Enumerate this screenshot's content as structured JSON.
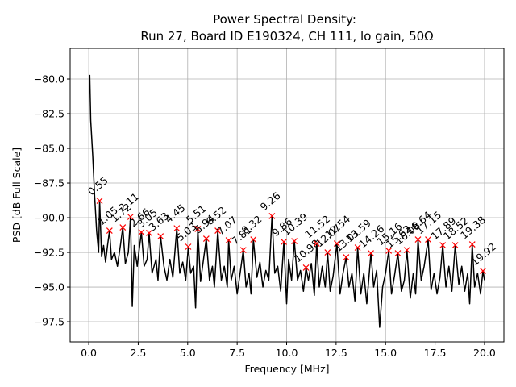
{
  "chart_data": {
    "type": "line",
    "title": "Power Spectral Density:",
    "subtitle": "Run 27, Board ID E190324, CH 111, lo gain, 50Ω",
    "x_label": "Frequency [MHz]",
    "y_label": "PSD [dB Full Scale]",
    "grid": true,
    "xlim": [
      -0.94,
      20.98
    ],
    "ylim": [
      -98.95,
      -77.79
    ],
    "xticks": [
      {
        "value": 0,
        "label": "0.0"
      },
      {
        "value": 2.5,
        "label": "2.5"
      },
      {
        "value": 5,
        "label": "5.0"
      },
      {
        "value": 7.5,
        "label": "7.5"
      },
      {
        "value": 10,
        "label": "10.0"
      },
      {
        "value": 12.5,
        "label": "12.5"
      },
      {
        "value": 15,
        "label": "15.0"
      },
      {
        "value": 17.5,
        "label": "17.5"
      },
      {
        "value": 20,
        "label": "20.0"
      }
    ],
    "yticks": [
      {
        "value": -97.5,
        "label": "−97.5"
      },
      {
        "value": -95,
        "label": "−95.0"
      },
      {
        "value": -92.5,
        "label": "−92.5"
      },
      {
        "value": -90,
        "label": "−90.0"
      },
      {
        "value": -87.5,
        "label": "−87.5"
      },
      {
        "value": -85,
        "label": "−85.0"
      },
      {
        "value": -82.5,
        "label": "−82.5"
      },
      {
        "value": -80,
        "label": "−80.0"
      }
    ],
    "series": [
      {
        "color": "#000000",
        "x": [
          0.05,
          0.1,
          0.2,
          0.3,
          0.4,
          0.5,
          0.55,
          0.65,
          0.75,
          0.85,
          0.95,
          1.05,
          1.15,
          1.3,
          1.45,
          1.6,
          1.72,
          1.85,
          2.0,
          2.11,
          2.2,
          2.3,
          2.45,
          2.55,
          2.66,
          2.8,
          2.95,
          3.05,
          3.2,
          3.4,
          3.5,
          3.63,
          3.8,
          3.95,
          4.1,
          4.25,
          4.45,
          4.6,
          4.75,
          4.9,
          5.03,
          5.15,
          5.3,
          5.4,
          5.51,
          5.65,
          5.8,
          5.94,
          6.1,
          6.25,
          6.35,
          6.52,
          6.7,
          6.85,
          7.0,
          7.07,
          7.2,
          7.35,
          7.5,
          7.65,
          7.81,
          7.95,
          8.1,
          8.2,
          8.32,
          8.5,
          8.65,
          8.8,
          8.95,
          9.1,
          9.26,
          9.4,
          9.55,
          9.7,
          9.86,
          10.0,
          10.1,
          10.25,
          10.39,
          10.55,
          10.7,
          10.85,
          10.98,
          11.1,
          11.25,
          11.4,
          11.52,
          11.65,
          11.8,
          11.95,
          12.07,
          12.2,
          12.35,
          12.54,
          12.7,
          12.85,
          13.01,
          13.15,
          13.3,
          13.45,
          13.59,
          13.75,
          13.9,
          14.05,
          14.26,
          14.4,
          14.55,
          14.7,
          14.85,
          15.0,
          15.16,
          15.3,
          15.45,
          15.62,
          15.8,
          15.95,
          16.08,
          16.25,
          16.4,
          16.52,
          16.64,
          16.8,
          16.95,
          17.15,
          17.3,
          17.45,
          17.6,
          17.75,
          17.89,
          18.05,
          18.2,
          18.35,
          18.52,
          18.7,
          18.85,
          19.0,
          19.15,
          19.25,
          19.38,
          19.5,
          19.65,
          19.8,
          19.92,
          20.0
        ],
        "values": [
          -79.7,
          -83.0,
          -85.5,
          -88.5,
          -91,
          -92.5,
          -88.78,
          -92.8,
          -92.0,
          -93.2,
          -92,
          -90.93,
          -93,
          -92.5,
          -93.5,
          -92,
          -90.7,
          -93.3,
          -92.5,
          -89.94,
          -96.4,
          -92,
          -93.5,
          -92.3,
          -91.05,
          -93.5,
          -93,
          -91.1,
          -94,
          -93,
          -94.5,
          -91.34,
          -93.5,
          -94.5,
          -93,
          -94.3,
          -90.76,
          -94,
          -93.2,
          -94.5,
          -92.09,
          -94,
          -93.5,
          -96.5,
          -90.81,
          -94.6,
          -93,
          -91.51,
          -94.5,
          -93.5,
          -95,
          -90.93,
          -94.5,
          -93.5,
          -95,
          -91.63,
          -94.5,
          -93.5,
          -95.5,
          -94,
          -92.33,
          -95,
          -94,
          -95.5,
          -91.57,
          -94.3,
          -93.2,
          -95,
          -93.8,
          -94.5,
          -89.88,
          -94,
          -93.5,
          -95.3,
          -91.74,
          -96.2,
          -93,
          -94.5,
          -91.69,
          -94.5,
          -93.8,
          -95.3,
          -93.6,
          -94.5,
          -93.3,
          -95.6,
          -91.86,
          -95,
          -93.5,
          -95,
          -92.5,
          -95.3,
          -94.2,
          -91.86,
          -95.5,
          -94,
          -92.85,
          -95,
          -94,
          -96,
          -92.15,
          -95.5,
          -94,
          -96.2,
          -92.56,
          -95,
          -93.8,
          -97.9,
          -95,
          -94,
          -92.38,
          -95.5,
          -94.2,
          -92.56,
          -95.3,
          -94.5,
          -92.33,
          -95.8,
          -94,
          -95.5,
          -91.57,
          -94.5,
          -93.5,
          -91.57,
          -95.2,
          -94,
          -95.5,
          -94.3,
          -91.98,
          -95,
          -93.5,
          -95.3,
          -91.98,
          -94.8,
          -93.5,
          -95.3,
          -94,
          -96.2,
          -91.92,
          -95,
          -94,
          -95.5,
          -93.84,
          -94.5
        ]
      }
    ],
    "peaks": {
      "color": "#ff0000",
      "x": [
        0.55,
        1.05,
        1.72,
        2.11,
        2.66,
        3.05,
        3.63,
        4.45,
        5.03,
        5.51,
        5.94,
        6.52,
        7.07,
        7.81,
        8.32,
        9.26,
        9.86,
        10.39,
        10.98,
        11.52,
        12.07,
        12.54,
        13.01,
        13.59,
        14.26,
        15.16,
        15.62,
        16.08,
        16.64,
        17.15,
        17.89,
        18.52,
        19.38,
        19.92
      ],
      "values": [
        -88.78,
        -90.93,
        -90.7,
        -89.94,
        -91.05,
        -91.1,
        -91.34,
        -90.76,
        -92.09,
        -90.81,
        -91.51,
        -90.93,
        -91.63,
        -92.33,
        -91.57,
        -89.88,
        -91.74,
        -91.69,
        -93.6,
        -91.86,
        -92.5,
        -91.86,
        -92.85,
        -92.15,
        -92.56,
        -92.38,
        -92.56,
        -92.33,
        -91.57,
        -91.57,
        -91.98,
        -91.98,
        -91.92,
        -93.84
      ]
    }
  }
}
